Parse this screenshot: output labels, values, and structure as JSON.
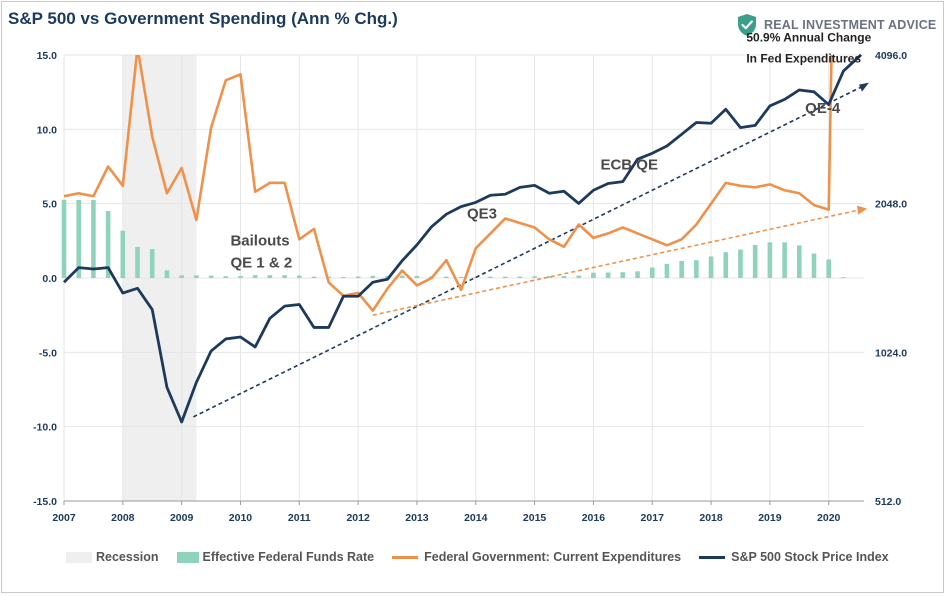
{
  "page": {
    "title": "S&P 500 vs Government Spending (Ann % Chg.)"
  },
  "brand": {
    "name": "REAL INVESTMENT ADVICE",
    "icon": "shield-check-icon",
    "icon_color": "#3aa08a"
  },
  "colors": {
    "recession": "#efefef",
    "fed_funds": "#8fd3bd",
    "gov_spending": "#f0914a",
    "sp500": "#1d3a5c",
    "axis_text": "#1b3a5c"
  },
  "legend": {
    "recession": "Recession",
    "fed_funds": "Effective Federal Funds Rate",
    "gov_spending": "Federal Government: Current Expenditures",
    "sp500": "S&P 500 Stock Price Index"
  },
  "chart_data": {
    "type": "line",
    "title": "S&P 500 vs Government Spending (Ann % Chg.)",
    "x_ticks": [
      "2007",
      "2008",
      "2009",
      "2010",
      "2011",
      "2012",
      "2013",
      "2014",
      "2015",
      "2016",
      "2017",
      "2018",
      "2019",
      "2020"
    ],
    "xlim": [
      2007.0,
      2020.6
    ],
    "left_axis": {
      "ylim": [
        -15,
        15
      ],
      "ticks": [
        "15.0",
        "10.0",
        "5.0",
        "0.0",
        "-5.0",
        "-10.0",
        "-15.0"
      ]
    },
    "right_axis": {
      "scale": "log2",
      "ylim": [
        512,
        4096
      ],
      "ticks": [
        "4096.0",
        "2048.0",
        "1024.0",
        "512.0"
      ]
    },
    "recession_band": [
      2008.0,
      2009.25
    ],
    "annotations": [
      {
        "text": "Bailouts",
        "x": 2009.83,
        "y": 2.2
      },
      {
        "text": "QE 1 & 2",
        "x": 2009.83,
        "y": 0.7
      },
      {
        "text": "QE3",
        "x": 2013.85,
        "y": 4.0
      },
      {
        "text": "ECB QE",
        "x": 2016.12,
        "y": 7.3
      },
      {
        "text": "QE-4",
        "x": 2019.6,
        "y": 11.1
      },
      {
        "text": "50.9% Annual Change",
        "x": 2018.6,
        "y": 15.9
      },
      {
        "text": "In Fed Expenditures",
        "x": 2018.6,
        "y": 14.5
      }
    ],
    "series": [
      {
        "name": "Effective Federal Funds Rate",
        "kind": "bar",
        "axis": "left",
        "x": [
          2007.0,
          2007.25,
          2007.5,
          2007.75,
          2008.0,
          2008.25,
          2008.5,
          2008.75,
          2009.0,
          2009.25,
          2009.5,
          2009.75,
          2010.0,
          2010.25,
          2010.5,
          2010.75,
          2011.0,
          2011.25,
          2011.5,
          2011.75,
          2012.0,
          2012.25,
          2012.5,
          2012.75,
          2013.0,
          2013.25,
          2013.5,
          2013.75,
          2014.0,
          2014.25,
          2014.5,
          2014.75,
          2015.0,
          2015.25,
          2015.5,
          2015.75,
          2016.0,
          2016.25,
          2016.5,
          2016.75,
          2017.0,
          2017.25,
          2017.5,
          2017.75,
          2018.0,
          2018.25,
          2018.5,
          2018.75,
          2019.0,
          2019.25,
          2019.5,
          2019.75,
          2020.0,
          2020.25
        ],
        "values": [
          5.26,
          5.25,
          5.25,
          4.5,
          3.18,
          2.09,
          1.94,
          0.51,
          0.18,
          0.18,
          0.16,
          0.12,
          0.13,
          0.19,
          0.19,
          0.19,
          0.16,
          0.09,
          0.09,
          0.07,
          0.1,
          0.15,
          0.14,
          0.16,
          0.14,
          0.12,
          0.09,
          0.08,
          0.07,
          0.09,
          0.09,
          0.1,
          0.11,
          0.13,
          0.13,
          0.16,
          0.36,
          0.37,
          0.39,
          0.45,
          0.7,
          0.95,
          1.15,
          1.2,
          1.45,
          1.74,
          1.92,
          2.22,
          2.4,
          2.4,
          2.19,
          1.65,
          1.25,
          0.06
        ]
      },
      {
        "name": "Federal Government: Current Expenditures",
        "kind": "line",
        "axis": "left",
        "x": [
          2007.0,
          2007.25,
          2007.5,
          2007.75,
          2008.0,
          2008.25,
          2008.5,
          2008.75,
          2009.0,
          2009.25,
          2009.5,
          2009.75,
          2010.0,
          2010.25,
          2010.5,
          2010.75,
          2011.0,
          2011.25,
          2011.5,
          2011.75,
          2012.0,
          2012.25,
          2012.5,
          2012.75,
          2013.0,
          2013.25,
          2013.5,
          2013.75,
          2014.0,
          2014.25,
          2014.5,
          2014.75,
          2015.0,
          2015.25,
          2015.5,
          2015.75,
          2016.0,
          2016.25,
          2016.5,
          2016.75,
          2017.0,
          2017.25,
          2017.5,
          2017.75,
          2018.0,
          2018.25,
          2018.5,
          2018.75,
          2019.0,
          2019.25,
          2019.5,
          2019.75,
          2020.0,
          2020.05
        ],
        "values": [
          5.5,
          5.7,
          5.5,
          7.5,
          6.2,
          15.5,
          9.5,
          5.7,
          7.4,
          3.9,
          10.1,
          13.3,
          13.7,
          5.8,
          6.4,
          6.4,
          2.6,
          3.3,
          -0.3,
          -1.2,
          -1.0,
          -2.2,
          -0.7,
          0.5,
          -0.5,
          0.0,
          1.2,
          -0.8,
          2.0,
          3.0,
          4.0,
          3.7,
          3.4,
          2.6,
          2.1,
          3.6,
          2.7,
          3.0,
          3.4,
          3.0,
          2.6,
          2.2,
          2.6,
          3.6,
          5.0,
          6.4,
          6.2,
          6.1,
          6.3,
          5.9,
          5.7,
          4.9,
          4.6,
          15.5
        ]
      },
      {
        "name": "S&P 500 Stock Price Index",
        "kind": "line",
        "axis": "right",
        "x": [
          2007.0,
          2007.25,
          2007.5,
          2007.75,
          2008.0,
          2008.25,
          2008.5,
          2008.75,
          2009.0,
          2009.25,
          2009.5,
          2009.75,
          2010.0,
          2010.25,
          2010.5,
          2010.75,
          2011.0,
          2011.25,
          2011.5,
          2011.75,
          2012.0,
          2012.25,
          2012.5,
          2012.75,
          2013.0,
          2013.25,
          2013.5,
          2013.75,
          2014.0,
          2014.25,
          2014.5,
          2014.75,
          2015.0,
          2015.25,
          2015.5,
          2015.75,
          2016.0,
          2016.25,
          2016.5,
          2016.75,
          2017.0,
          2017.25,
          2017.5,
          2017.75,
          2018.0,
          2018.25,
          2018.5,
          2018.75,
          2019.0,
          2019.25,
          2019.5,
          2019.75,
          2020.0,
          2020.25,
          2020.55
        ],
        "values": [
          1420,
          1520,
          1510,
          1520,
          1350,
          1380,
          1250,
          870,
          740,
          890,
          1030,
          1090,
          1100,
          1050,
          1200,
          1270,
          1280,
          1150,
          1150,
          1330,
          1330,
          1420,
          1440,
          1570,
          1690,
          1840,
          1950,
          2020,
          2060,
          2130,
          2140,
          2210,
          2230,
          2150,
          2170,
          2050,
          2180,
          2250,
          2270,
          2520,
          2590,
          2680,
          2830,
          2990,
          2980,
          3180,
          2920,
          2950,
          3230,
          3330,
          3480,
          3450,
          3250,
          3800,
          4100
        ]
      }
    ],
    "trend_lines": [
      {
        "name": "S&P 500 trend",
        "axis": "right",
        "from": [
          2009.2,
          758
        ],
        "to": [
          2020.6,
          3550
        ]
      },
      {
        "name": "Government spending trend",
        "axis": "left",
        "from": [
          2012.25,
          -2.5
        ],
        "to": [
          2020.55,
          4.6
        ]
      }
    ]
  }
}
